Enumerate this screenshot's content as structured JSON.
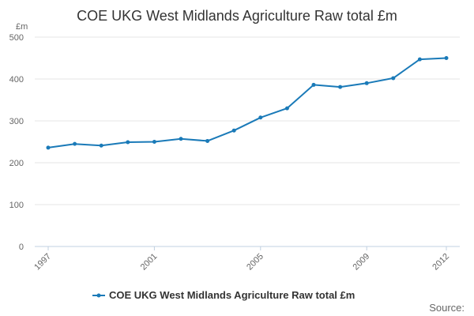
{
  "chart_data": {
    "type": "line",
    "title": "COE UKG West Midlands Agriculture Raw total £m",
    "ylabel": "£m",
    "xlabel": "",
    "ylim": [
      0,
      500
    ],
    "yticks": [
      0,
      100,
      200,
      300,
      400,
      500
    ],
    "xticks": [
      1997,
      2001,
      2005,
      2009,
      2012
    ],
    "x": [
      1997,
      1998,
      1999,
      2000,
      2001,
      2002,
      2003,
      2004,
      2005,
      2006,
      2007,
      2008,
      2009,
      2010,
      2011,
      2012
    ],
    "series": [
      {
        "name": "COE UKG West Midlands Agriculture Raw total £m",
        "color": "#1a7ab8",
        "values": [
          236,
          245,
          241,
          249,
          250,
          257,
          252,
          277,
          308,
          330,
          386,
          381,
          390,
          402,
          447,
          450
        ]
      }
    ],
    "grid": true,
    "legend": "bottom-center",
    "source_label": "Source:"
  }
}
